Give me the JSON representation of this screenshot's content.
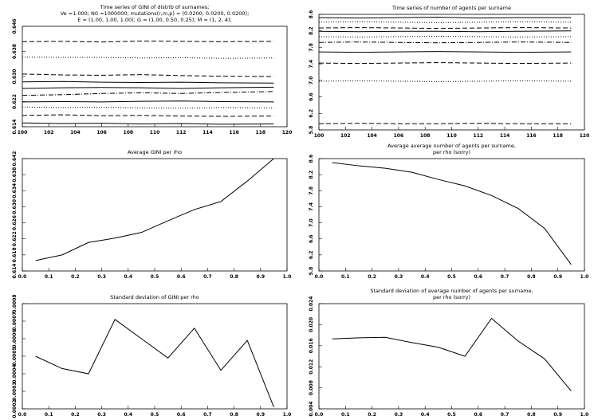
{
  "chart_data": [
    {
      "type": "line",
      "title": [
        "Time series of GINI of distrib of surnames;",
        "Ve =1.000; N0 =1000000; mutations(r,m,p) = (0.0200, 0.0200, 0.0200);",
        "E = (1.00, 1.00, 1.00); G = (1.00, 0.50, 0.25); M = (1, 2, 4);"
      ],
      "x": [
        100,
        103,
        106,
        109,
        112,
        115,
        119
      ],
      "series": [
        {
          "color": "#000000",
          "dash": "dashed",
          "values": [
            0.6411,
            0.6412,
            0.641,
            0.6413,
            0.6412,
            0.6411,
            0.6412
          ]
        },
        {
          "color": "#000000",
          "dash": "dotted",
          "values": [
            0.6362,
            0.6361,
            0.6361,
            0.6359,
            0.636,
            0.6358,
            0.6359
          ]
        },
        {
          "color": "#000000",
          "dash": "dashed",
          "values": [
            0.6308,
            0.6305,
            0.6304,
            0.6306,
            0.6303,
            0.6301,
            0.63
          ]
        },
        {
          "color": "#000000",
          "dash": "solid",
          "values": [
            0.6283,
            0.6284,
            0.6282,
            0.6281,
            0.6282,
            0.628,
            0.6279
          ]
        },
        {
          "color": "#000000",
          "dash": "solid",
          "values": [
            0.6262,
            0.6264,
            0.6265,
            0.6264,
            0.6262,
            0.6264,
            0.6266
          ]
        },
        {
          "color": "#000000",
          "dash": "dashdot",
          "values": [
            0.624,
            0.6242,
            0.6246,
            0.6248,
            0.6246,
            0.6249,
            0.6252
          ]
        },
        {
          "color": "#000000",
          "dash": "solid",
          "values": [
            0.6219,
            0.622,
            0.6219,
            0.6221,
            0.6222,
            0.622,
            0.6219
          ]
        },
        {
          "color": "#000000",
          "dash": "dotted",
          "values": [
            0.6203,
            0.6201,
            0.6202,
            0.62,
            0.6199,
            0.6201,
            0.62
          ]
        },
        {
          "color": "#000000",
          "dash": "dashed",
          "values": [
            0.6176,
            0.6178,
            0.6175,
            0.6176,
            0.6174,
            0.6173,
            0.6174
          ]
        },
        {
          "color": "#000000",
          "dash": "solid",
          "values": [
            0.6152,
            0.615,
            0.6151,
            0.6149,
            0.615,
            0.6148,
            0.6149
          ]
        }
      ],
      "xlim": [
        100,
        120
      ],
      "xticks": [
        100,
        102,
        104,
        106,
        108,
        110,
        112,
        114,
        116,
        118,
        120
      ],
      "ylim": [
        0.614,
        0.646
      ],
      "yticks": [
        0.614,
        0.622,
        {
          "value": 0.63,
          "label": "0.630"
        },
        0.638,
        0.646
      ]
    },
    {
      "type": "line",
      "title": [
        "Time series of number of agents per surname"
      ],
      "x": [
        100,
        103,
        106,
        109,
        112,
        115,
        119
      ],
      "series": [
        {
          "color": "#000000",
          "dash": "solid",
          "values": [
            8.52,
            8.51,
            8.52,
            8.53,
            8.51,
            8.52,
            8.52
          ]
        },
        {
          "color": "#000000",
          "dash": "dotted",
          "values": [
            8.41,
            8.42,
            8.41,
            8.4,
            8.41,
            8.42,
            8.41
          ]
        },
        {
          "color": "#000000",
          "dash": "dashed",
          "values": [
            8.27,
            8.28,
            8.27,
            8.26,
            8.27,
            8.28,
            8.27
          ]
        },
        {
          "color": "#000000",
          "dash": "solid",
          "values": [
            8.19,
            8.18,
            8.19,
            8.19,
            8.18,
            8.19,
            8.2
          ]
        },
        {
          "color": "#000000",
          "dash": "dotted",
          "values": [
            8.06,
            8.05,
            8.06,
            8.07,
            8.06,
            8.05,
            8.06
          ]
        },
        {
          "color": "#000000",
          "dash": "dashdot",
          "values": [
            7.92,
            7.93,
            7.92,
            7.91,
            7.92,
            7.93,
            7.92
          ]
        },
        {
          "color": "#000000",
          "dash": "solid",
          "values": [
            7.69,
            7.68,
            7.69,
            7.7,
            7.69,
            7.68,
            7.69
          ]
        },
        {
          "color": "#000000",
          "dash": "dashed",
          "values": [
            7.42,
            7.41,
            7.42,
            7.43,
            7.42,
            7.41,
            7.42
          ]
        },
        {
          "color": "#000000",
          "dash": "dotted",
          "values": [
            6.98,
            6.99,
            6.98,
            6.97,
            6.98,
            6.99,
            6.98
          ]
        },
        {
          "color": "#000000",
          "dash": "dashed",
          "values": [
            5.95,
            5.96,
            5.95,
            5.95,
            5.96,
            5.95,
            5.95
          ]
        }
      ],
      "xlim": [
        100,
        120
      ],
      "xticks": [
        100,
        102,
        104,
        106,
        108,
        110,
        112,
        114,
        116,
        118,
        120
      ],
      "ylim": [
        5.8,
        8.6
      ],
      "yticks": [
        5.8,
        6.2,
        6.6,
        {
          "value": 7,
          "label": "7.0"
        },
        7.4,
        7.8,
        8.2,
        8.6
      ]
    },
    {
      "type": "line",
      "title": [
        "Average GINI per rho"
      ],
      "x": [
        0.05,
        0.15,
        0.25,
        0.35,
        0.45,
        0.55,
        0.65,
        0.75,
        0.85,
        0.95
      ],
      "values": [
        0.6166,
        0.618,
        0.6211,
        0.6222,
        0.6236,
        0.6265,
        0.6293,
        0.6313,
        0.6364,
        0.642
      ],
      "color": "#000000",
      "xlim": [
        0,
        1
      ],
      "xticks": [
        {
          "value": 0,
          "label": "0.0"
        },
        0.1,
        0.2,
        0.3,
        0.4,
        0.5,
        0.6,
        0.7,
        0.8,
        0.9,
        {
          "value": 1,
          "label": "1.0"
        }
      ],
      "ylim": [
        0.614,
        0.642
      ],
      "yticks": [
        0.614,
        0.618,
        0.622,
        0.626,
        {
          "value": 0.63,
          "label": "0.630"
        },
        0.634,
        0.638,
        0.642
      ]
    },
    {
      "type": "line",
      "title": [
        "Average average number of agents per surname,",
        "per rho (sorry)"
      ],
      "x": [
        0.05,
        0.15,
        0.25,
        0.35,
        0.45,
        0.55,
        0.65,
        0.75,
        0.85,
        0.95
      ],
      "values": [
        8.5,
        8.42,
        8.36,
        8.26,
        8.08,
        7.92,
        7.68,
        7.36,
        6.86,
        5.96
      ],
      "color": "#000000",
      "xlim": [
        0,
        1
      ],
      "xticks": [
        {
          "value": 0,
          "label": "0.0"
        },
        0.1,
        0.2,
        0.3,
        0.4,
        0.5,
        0.6,
        0.7,
        0.8,
        0.9,
        {
          "value": 1,
          "label": "1.0"
        }
      ],
      "ylim": [
        5.8,
        8.6
      ],
      "yticks": [
        5.8,
        6.2,
        6.6,
        {
          "value": 7,
          "label": "7.0"
        },
        7.4,
        7.8,
        8.2,
        8.6
      ]
    },
    {
      "type": "line",
      "title": [
        "Standard deviation of GINI per rho"
      ],
      "x": [
        0.05,
        0.15,
        0.25,
        0.35,
        0.45,
        0.55,
        0.65,
        0.75,
        0.85,
        0.95
      ],
      "values": [
        0.0005,
        0.00043,
        0.0004,
        0.00071,
        0.0006,
        0.00049,
        0.00066,
        0.00042,
        0.00059,
        0.00021
      ],
      "color": "#000000",
      "xlim": [
        0,
        1
      ],
      "xticks": [
        {
          "value": 0,
          "label": "0.0"
        },
        0.1,
        0.2,
        0.3,
        0.4,
        0.5,
        0.6,
        0.7,
        0.8,
        0.9,
        {
          "value": 1,
          "label": "1.0"
        }
      ],
      "ylim": [
        0.0002,
        0.0008
      ],
      "yticks": [
        0.0002,
        0.0003,
        0.0004,
        0.0005,
        0.0006,
        0.0007,
        0.0008
      ]
    },
    {
      "type": "line",
      "title": [
        "Standard deviation of average number of agents per surname,",
        "per rho (sorry)"
      ],
      "x": [
        0.05,
        0.15,
        0.25,
        0.35,
        0.45,
        0.55,
        0.65,
        0.75,
        0.85,
        0.95
      ],
      "values": [
        0.0173,
        0.0175,
        0.0176,
        0.0166,
        0.0157,
        0.014,
        0.0212,
        0.0169,
        0.0135,
        0.0074
      ],
      "color": "#000000",
      "xlim": [
        0,
        1
      ],
      "xticks": [
        {
          "value": 0,
          "label": "0.0"
        },
        0.1,
        0.2,
        0.3,
        0.4,
        0.5,
        0.6,
        0.7,
        0.8,
        0.9,
        {
          "value": 1,
          "label": "1.0"
        }
      ],
      "ylim": [
        0.004,
        0.024
      ],
      "yticks": [
        0.004,
        0.008,
        0.012,
        0.016,
        {
          "value": 0.02,
          "label": "0.020"
        },
        0.024
      ]
    }
  ]
}
